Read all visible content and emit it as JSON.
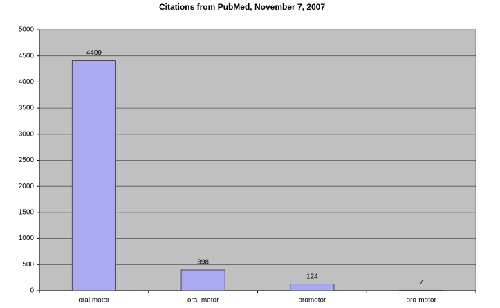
{
  "chart_data": {
    "type": "bar",
    "title": "Citations from PubMed, November 7, 2007",
    "categories": [
      "oral motor",
      "oral-motor",
      "oromotor",
      "oro-motor"
    ],
    "values": [
      4409,
      398,
      124,
      7
    ],
    "color": "#aaaaf2",
    "ylim": [
      0,
      5000
    ],
    "yticks": [
      0,
      500,
      1000,
      1500,
      2000,
      2500,
      3000,
      3500,
      4000,
      4500,
      5000
    ],
    "grid": true
  }
}
